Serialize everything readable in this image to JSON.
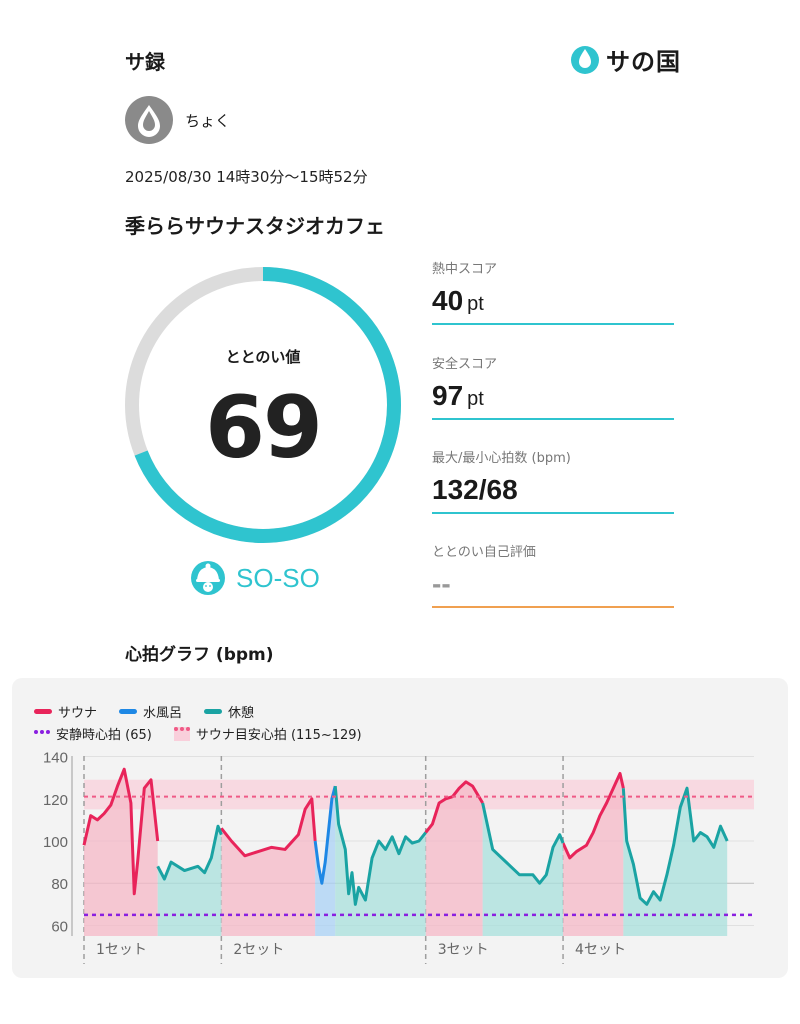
{
  "app_title": "サ録",
  "brand": {
    "logo_text": "サの国",
    "logo_icon": "water-drop-icon",
    "accent_color": "#2fc4cf"
  },
  "user": {
    "name": "ちょく",
    "avatar_icon": "water-drop-icon"
  },
  "session": {
    "datetime": "2025/08/30 14時30分〜15時52分",
    "facility": "季ららサウナスタジオカフェ"
  },
  "totonoi": {
    "label": "ととのい値",
    "value": "69",
    "progress_fraction": 0.69,
    "status": "SO-SO",
    "status_icon": "hat-face-icon"
  },
  "metrics": [
    {
      "label": "熱中スコア",
      "value": "40",
      "unit": "pt",
      "line_color": "#2fc4cf"
    },
    {
      "label": "安全スコア",
      "value": "97",
      "unit": "pt",
      "line_color": "#2fc4cf"
    },
    {
      "label": "最大/最小心拍数 (bpm)",
      "value": "132/68",
      "unit": "",
      "line_color": "#2fc4cf"
    },
    {
      "label": "ととのい自己評価",
      "value": "--",
      "unit": "",
      "line_color": "#f0a050"
    }
  ],
  "graph": {
    "title": "心拍グラフ (bpm)",
    "legend": {
      "sauna": "サウナ",
      "cold_bath": "水風呂",
      "rest": "休憩",
      "resting_hr": "安静時心拍 (65)",
      "target_hr": "サウナ目安心拍 (115~129)"
    },
    "colors": {
      "sauna": "#e8245a",
      "cold_bath": "#1e88e5",
      "rest": "#1aa3a3",
      "resting": "#8a1fe0",
      "target": "#ef5a86"
    },
    "sets": [
      "1セット",
      "2セット",
      "3セット",
      "4セット"
    ]
  },
  "chart_data": {
    "type": "line",
    "title": "心拍グラフ (bpm)",
    "xlabel": "",
    "ylabel": "",
    "ylim": [
      55,
      145
    ],
    "yticks": [
      60,
      80,
      100,
      120,
      140
    ],
    "xlim": [
      0,
      100
    ],
    "grid": true,
    "reference_lines": [
      {
        "name": "安静時心拍 (65)",
        "y": 65
      },
      {
        "name": "サウナ目安心拍 (115~129)",
        "y": 121,
        "band": [
          115,
          129
        ]
      }
    ],
    "phases": [
      {
        "set": "1セット",
        "type": "sauna",
        "x_range": [
          0,
          11
        ]
      },
      {
        "set": "1セット",
        "type": "rest",
        "x_range": [
          11,
          20.5
        ]
      },
      {
        "set": "2セット",
        "type": "sauna",
        "x_range": [
          20.5,
          34.5
        ]
      },
      {
        "set": "2セット",
        "type": "cold_bath",
        "x_range": [
          34.5,
          37.5
        ]
      },
      {
        "set": "2セット",
        "type": "rest",
        "x_range": [
          37.5,
          51
        ]
      },
      {
        "set": "3セット",
        "type": "sauna",
        "x_range": [
          51,
          59.5
        ]
      },
      {
        "set": "3セット",
        "type": "rest",
        "x_range": [
          59.5,
          71.5
        ]
      },
      {
        "set": "4セット",
        "type": "sauna",
        "x_range": [
          71.5,
          80.5
        ]
      },
      {
        "set": "4セット",
        "type": "rest",
        "x_range": [
          80.5,
          100
        ]
      }
    ],
    "series": [
      {
        "name": "サウナ",
        "segments": [
          [
            [
              0,
              98
            ],
            [
              1,
              112
            ],
            [
              2,
              110
            ],
            [
              3,
              113
            ],
            [
              4,
              117
            ],
            [
              5,
              126
            ],
            [
              6,
              134
            ],
            [
              7,
              118
            ],
            [
              7.5,
              75
            ],
            [
              8,
              90
            ],
            [
              9,
              125
            ],
            [
              10,
              129
            ],
            [
              11,
              100
            ]
          ],
          [
            [
              20.5,
              106
            ],
            [
              22,
              100
            ],
            [
              24,
              93
            ],
            [
              26,
              95
            ],
            [
              28,
              97
            ],
            [
              30,
              96
            ],
            [
              32,
              103
            ],
            [
              33,
              115
            ],
            [
              34,
              120
            ],
            [
              34.5,
              100
            ]
          ],
          [
            [
              51,
              104
            ],
            [
              52,
              108
            ],
            [
              53,
              118
            ],
            [
              54,
              120
            ],
            [
              55,
              121
            ],
            [
              56,
              125
            ],
            [
              57,
              128
            ],
            [
              58,
              126
            ],
            [
              59.5,
              118
            ]
          ],
          [
            [
              71.5,
              99
            ],
            [
              72.5,
              92
            ],
            [
              73.5,
              95
            ],
            [
              75,
              98
            ],
            [
              76,
              104
            ],
            [
              77,
              112
            ],
            [
              78,
              118
            ],
            [
              79,
              125
            ],
            [
              80,
              132
            ],
            [
              80.5,
              125
            ]
          ]
        ]
      },
      {
        "name": "水風呂",
        "segments": [
          [
            [
              34.5,
              100
            ],
            [
              35,
              88
            ],
            [
              35.5,
              80
            ],
            [
              36,
              90
            ],
            [
              37,
              120
            ],
            [
              37.5,
              126
            ]
          ]
        ]
      },
      {
        "name": "休憩",
        "segments": [
          [
            [
              11,
              88
            ],
            [
              12,
              82
            ],
            [
              13,
              90
            ],
            [
              15,
              86
            ],
            [
              17,
              88
            ],
            [
              18,
              85
            ],
            [
              19,
              92
            ],
            [
              20,
              107
            ],
            [
              20.5,
              103
            ]
          ],
          [
            [
              37.5,
              126
            ],
            [
              38,
              108
            ],
            [
              39,
              96
            ],
            [
              39.5,
              75
            ],
            [
              40,
              85
            ],
            [
              40.5,
              70
            ],
            [
              41,
              78
            ],
            [
              42,
              72
            ],
            [
              43,
              92
            ],
            [
              44,
              100
            ],
            [
              45,
              96
            ],
            [
              46,
              102
            ],
            [
              47,
              94
            ],
            [
              48,
              102
            ],
            [
              49,
              99
            ],
            [
              50,
              100
            ],
            [
              51,
              104
            ]
          ],
          [
            [
              59.5,
              118
            ],
            [
              61,
              96
            ],
            [
              63,
              90
            ],
            [
              65,
              84
            ],
            [
              67,
              84
            ],
            [
              68,
              80
            ],
            [
              69,
              84
            ],
            [
              70,
              97
            ],
            [
              71,
              103
            ],
            [
              71.5,
              99
            ]
          ],
          [
            [
              80.5,
              125
            ],
            [
              81,
              100
            ],
            [
              82,
              89
            ],
            [
              83,
              73
            ],
            [
              84,
              70
            ],
            [
              85,
              76
            ],
            [
              86,
              72
            ],
            [
              87,
              84
            ],
            [
              88,
              98
            ],
            [
              89,
              116
            ],
            [
              90,
              125
            ],
            [
              91,
              100
            ],
            [
              92,
              104
            ],
            [
              93,
              102
            ],
            [
              94,
              97
            ],
            [
              95,
              107
            ],
            [
              96,
              100
            ]
          ]
        ]
      }
    ]
  }
}
